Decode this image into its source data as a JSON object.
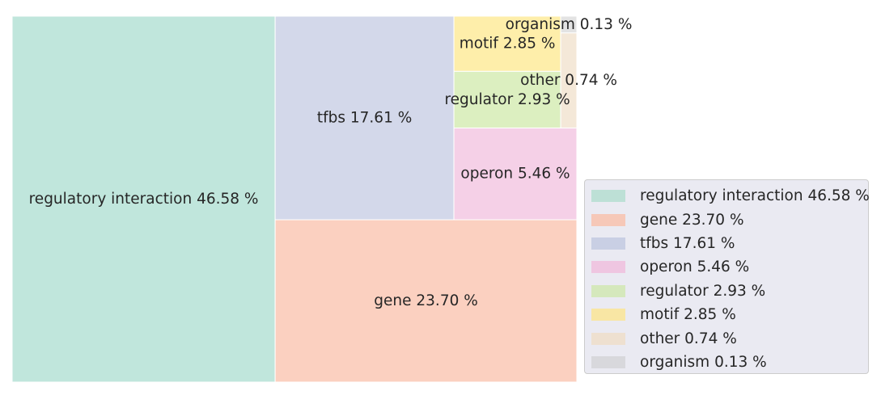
{
  "chart_data": {
    "type": "treemap",
    "title": "",
    "items": [
      {
        "name": "regulatory interaction",
        "value": 46.58,
        "label": "regulatory interaction 46.58 %",
        "color": "#c0e6dc"
      },
      {
        "name": "gene",
        "value": 23.7,
        "label": "gene 23.70 %",
        "color": "#fbd0c0"
      },
      {
        "name": "tfbs",
        "value": 17.61,
        "label": "tfbs 17.61 %",
        "color": "#d3d8ea"
      },
      {
        "name": "operon",
        "value": 5.46,
        "label": "operon 5.46 %",
        "color": "#f5d0e7"
      },
      {
        "name": "regulator",
        "value": 2.93,
        "label": "regulator 2.93 %",
        "color": "#dcefc0"
      },
      {
        "name": "motif",
        "value": 2.85,
        "label": "motif 2.85 %",
        "color": "#feeeaa"
      },
      {
        "name": "other",
        "value": 0.74,
        "label": "other 0.74 %",
        "color": "#f4e8d8"
      },
      {
        "name": "organism",
        "value": 0.13,
        "label": "organism 0.13 %",
        "color": "#e3e3e3"
      }
    ],
    "legend": {
      "placement": "right",
      "entries": [
        "regulatory interaction 46.58 %",
        "gene 23.70 %",
        "tfbs 17.61 %",
        "operon 5.46 %",
        "regulator 2.93 %",
        "motif 2.85 %",
        "other 0.74 %",
        "organism 0.13 %"
      ],
      "swatch_colors": [
        "#bde0d6",
        "#f6c8b8",
        "#c9cfe4",
        "#efc6e1",
        "#d5e8bc",
        "#f8e6a4",
        "#eee0d0",
        "#d8d8dc"
      ]
    }
  }
}
